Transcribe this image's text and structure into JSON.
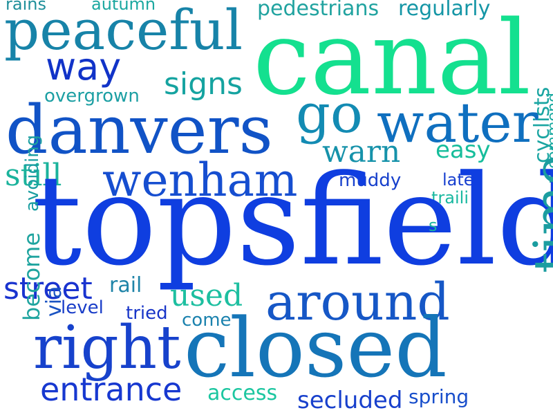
{
  "words": [
    {
      "text": "rains",
      "color": "#1f8f9a"
    },
    {
      "text": "autumn",
      "color": "#1ca8a0"
    },
    {
      "text": "peaceful",
      "color": "#1783a8"
    },
    {
      "text": "pedestrians",
      "color": "#21a3a0"
    },
    {
      "text": "regularly",
      "color": "#1596a6"
    },
    {
      "text": "canal",
      "color": "#14e08f"
    },
    {
      "text": "way",
      "color": "#1133c8"
    },
    {
      "text": "signs",
      "color": "#15a3a0"
    },
    {
      "text": "overgrown",
      "color": "#1c9fa3"
    },
    {
      "text": "go",
      "color": "#138bb3"
    },
    {
      "text": "water",
      "color": "#0f6fbf"
    },
    {
      "text": "danvers",
      "color": "#1153c6"
    },
    {
      "text": "warn",
      "color": "#1692aa"
    },
    {
      "text": "easy",
      "color": "#16bd9b"
    },
    {
      "text": "still",
      "color": "#1bb39c"
    },
    {
      "text": "wenham",
      "color": "#164ed0"
    },
    {
      "text": "muddy",
      "color": "#1740cc"
    },
    {
      "text": "late",
      "color": "#173fcf"
    },
    {
      "text": "traili",
      "color": "#19b8a0"
    },
    {
      "text": "cyclists",
      "color": "#1aa5a2"
    },
    {
      "text": "recommend",
      "color": "#19a9a0"
    },
    {
      "text": "topsfield",
      "color": "#0f3ee0"
    },
    {
      "text": "s",
      "color": "#1ab5a0"
    },
    {
      "text": "avoiding",
      "color": "#1b9ea1"
    },
    {
      "text": "street",
      "color": "#1933cf"
    },
    {
      "text": "rail",
      "color": "#1f84a8"
    },
    {
      "text": "used",
      "color": "#1dbfa0"
    },
    {
      "text": "around",
      "color": "#1657c6"
    },
    {
      "text": "time",
      "color": "#1b9da0"
    },
    {
      "text": "via",
      "color": "#1a53c2"
    },
    {
      "text": "level",
      "color": "#193dc8"
    },
    {
      "text": "tried",
      "color": "#1835c8"
    },
    {
      "text": "come",
      "color": "#1b82ae"
    },
    {
      "text": "right",
      "color": "#1742cc"
    },
    {
      "text": "closed",
      "color": "#1575b8"
    },
    {
      "text": "become",
      "color": "#1fa49f"
    },
    {
      "text": "entrance",
      "color": "#1738d0"
    },
    {
      "text": "access",
      "color": "#1cc6a0"
    },
    {
      "text": "secluded",
      "color": "#1840cc"
    },
    {
      "text": "spring",
      "color": "#184ecb"
    }
  ]
}
